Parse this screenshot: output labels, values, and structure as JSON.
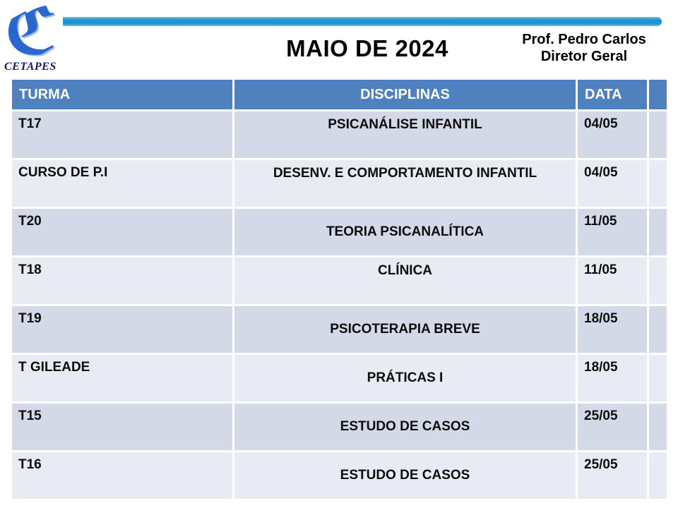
{
  "header": {
    "title": "MAIO DE 2024",
    "professor": "Prof. Pedro Carlos",
    "role": "Diretor Geral"
  },
  "logo": {
    "letter": "ℭ",
    "name": "CETAPES"
  },
  "table": {
    "headers": [
      "TURMA",
      "DISCIPLINAS",
      "DATA",
      ""
    ],
    "rows": [
      {
        "turma": "T17",
        "disciplina": "PSICANÁLISE INFANTIL",
        "data": "04/05"
      },
      {
        "turma": "CURSO DE P.I",
        "disciplina": "DESENV. E COMPORTAMENTO INFANTIL",
        "data": "04/05"
      },
      {
        "turma": "T20",
        "disciplina": "TEORIA PSICANALÍTICA",
        "data": "11/05"
      },
      {
        "turma": "T18",
        "disciplina": "CLÍNICA",
        "data": "11/05"
      },
      {
        "turma": "T19",
        "disciplina": "PSICOTERAPIA BREVE",
        "data": "18/05"
      },
      {
        "turma": "T GILEADE",
        "disciplina": "PRÁTICAS I",
        "data": "18/05"
      },
      {
        "turma": "T15",
        "disciplina": "ESTUDO DE CASOS",
        "data": "25/05"
      },
      {
        "turma": "T16",
        "disciplina": "ESTUDO DE CASOS",
        "data": "25/05"
      }
    ]
  },
  "colors": {
    "header_bg": "#4E81BD",
    "row_dark": "#D3D9E6",
    "row_light": "#E9EBF3",
    "top_bar": "#1E93D0",
    "logo_blue": "#2B66CC",
    "logo_text": "#16166B"
  }
}
